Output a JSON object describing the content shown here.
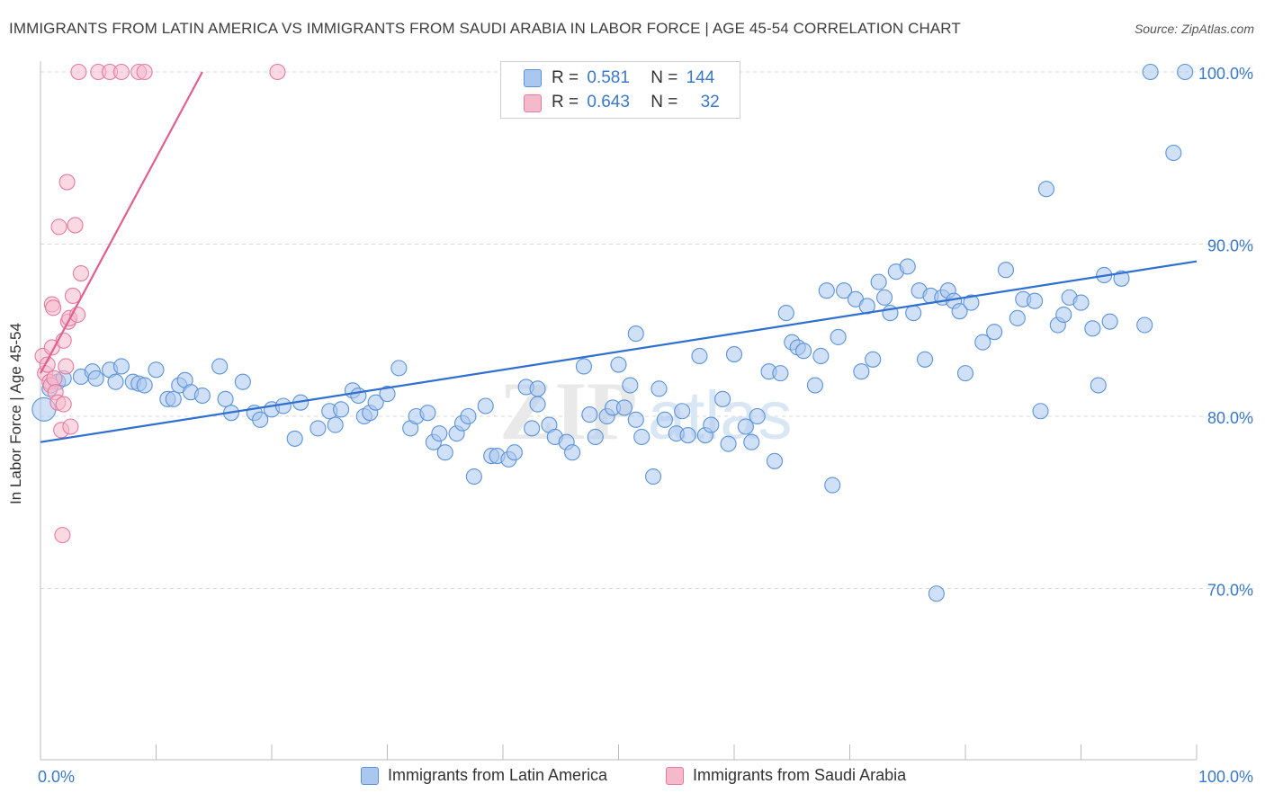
{
  "title": "IMMIGRANTS FROM LATIN AMERICA VS IMMIGRANTS FROM SAUDI ARABIA IN LABOR FORCE | AGE 45-54 CORRELATION CHART",
  "source": "Source: ZipAtlas.com",
  "watermark": {
    "zip": "ZIP",
    "atlas": "atlas"
  },
  "legend_stats": [
    {
      "r_label": "R =",
      "r_value": "0.581",
      "n_label": "N =",
      "n_value": "144"
    },
    {
      "r_label": "R =",
      "r_value": "0.643",
      "n_label": "N =",
      "n_value": "32"
    }
  ],
  "chart_data": {
    "type": "scatter",
    "title": "IMMIGRANTS FROM LATIN AMERICA VS IMMIGRANTS FROM SAUDI ARABIA IN LABOR FORCE | AGE 45-54 CORRELATION CHART",
    "xlabel": "",
    "ylabel": "In Labor Force | Age 45-54",
    "xlim": [
      0,
      100
    ],
    "ylim": [
      60,
      102
    ],
    "x_tick_labels": [
      "0.0%",
      "100.0%"
    ],
    "y_ticks": [
      {
        "value": 70,
        "label": "70.0%"
      },
      {
        "value": 80,
        "label": "80.0%"
      },
      {
        "value": 90,
        "label": "90.0%"
      },
      {
        "value": 100,
        "label": "100.0%"
      }
    ],
    "grid": true,
    "series": [
      {
        "name": "Immigrants from Latin America",
        "color": "#5b93d9",
        "fill": "#a9c7ef",
        "r": 0.581,
        "n": 144,
        "trendline": {
          "x": [
            0,
            100
          ],
          "y": [
            78.5,
            89.0
          ]
        },
        "points": [
          [
            0.3,
            80.4
          ],
          [
            0.8,
            81.6
          ],
          [
            1.5,
            82.0
          ],
          [
            2.0,
            82.2
          ],
          [
            3.5,
            82.3
          ],
          [
            4.5,
            82.6
          ],
          [
            4.8,
            82.2
          ],
          [
            6.0,
            82.7
          ],
          [
            6.5,
            82.0
          ],
          [
            7.0,
            82.9
          ],
          [
            8.0,
            82.0
          ],
          [
            8.5,
            81.9
          ],
          [
            9.0,
            81.8
          ],
          [
            10.0,
            82.7
          ],
          [
            11.0,
            81.0
          ],
          [
            11.5,
            81.0
          ],
          [
            12.0,
            81.8
          ],
          [
            12.5,
            82.1
          ],
          [
            13.0,
            81.4
          ],
          [
            14.0,
            81.2
          ],
          [
            15.5,
            82.9
          ],
          [
            16.0,
            81.0
          ],
          [
            16.5,
            80.2
          ],
          [
            17.5,
            82.0
          ],
          [
            18.5,
            80.2
          ],
          [
            19.0,
            79.8
          ],
          [
            20.0,
            80.4
          ],
          [
            21.0,
            80.6
          ],
          [
            22.0,
            78.7
          ],
          [
            22.5,
            80.8
          ],
          [
            24.0,
            79.3
          ],
          [
            25.0,
            80.3
          ],
          [
            25.5,
            79.5
          ],
          [
            26.0,
            80.4
          ],
          [
            27.0,
            81.5
          ],
          [
            27.5,
            81.2
          ],
          [
            28.0,
            80.0
          ],
          [
            28.5,
            80.2
          ],
          [
            29.0,
            80.8
          ],
          [
            30.0,
            81.3
          ],
          [
            31.0,
            82.8
          ],
          [
            32.0,
            79.3
          ],
          [
            32.5,
            80.0
          ],
          [
            33.5,
            80.2
          ],
          [
            34.0,
            78.5
          ],
          [
            34.5,
            79.0
          ],
          [
            35.0,
            77.9
          ],
          [
            36.0,
            79.0
          ],
          [
            36.5,
            79.6
          ],
          [
            37.0,
            80.0
          ],
          [
            37.5,
            76.5
          ],
          [
            38.5,
            80.6
          ],
          [
            39.0,
            77.7
          ],
          [
            39.5,
            77.7
          ],
          [
            40.5,
            77.5
          ],
          [
            41.0,
            77.9
          ],
          [
            42.0,
            81.7
          ],
          [
            42.5,
            79.3
          ],
          [
            43.0,
            80.7
          ],
          [
            44.0,
            79.5
          ],
          [
            44.5,
            78.8
          ],
          [
            45.5,
            78.5
          ],
          [
            46.0,
            77.9
          ],
          [
            47.0,
            82.9
          ],
          [
            47.5,
            80.1
          ],
          [
            48.0,
            78.8
          ],
          [
            49.0,
            80.0
          ],
          [
            49.5,
            80.5
          ],
          [
            50.0,
            83.0
          ],
          [
            50.5,
            80.5
          ],
          [
            51.0,
            81.8
          ],
          [
            51.5,
            79.8
          ],
          [
            52.0,
            78.8
          ],
          [
            53.0,
            76.5
          ],
          [
            53.5,
            81.6
          ],
          [
            54.0,
            79.8
          ],
          [
            55.0,
            79.0
          ],
          [
            55.5,
            80.3
          ],
          [
            56.0,
            78.9
          ],
          [
            57.0,
            83.5
          ],
          [
            57.5,
            78.9
          ],
          [
            58.0,
            79.5
          ],
          [
            59.0,
            81.0
          ],
          [
            59.5,
            78.4
          ],
          [
            60.0,
            83.6
          ],
          [
            61.0,
            79.4
          ],
          [
            61.5,
            78.5
          ],
          [
            62.0,
            80.0
          ],
          [
            63.0,
            82.6
          ],
          [
            63.5,
            77.4
          ],
          [
            64.0,
            82.5
          ],
          [
            64.5,
            86.0
          ],
          [
            65.0,
            84.3
          ],
          [
            65.5,
            84.0
          ],
          [
            66.0,
            83.8
          ],
          [
            67.0,
            81.8
          ],
          [
            67.5,
            83.5
          ],
          [
            68.0,
            87.3
          ],
          [
            68.5,
            76.0
          ],
          [
            69.0,
            84.6
          ],
          [
            69.5,
            87.3
          ],
          [
            70.5,
            86.8
          ],
          [
            71.0,
            82.6
          ],
          [
            71.5,
            86.4
          ],
          [
            72.0,
            83.3
          ],
          [
            72.5,
            87.8
          ],
          [
            73.0,
            86.9
          ],
          [
            73.5,
            86.0
          ],
          [
            74.0,
            88.4
          ],
          [
            75.0,
            88.7
          ],
          [
            75.5,
            86.0
          ],
          [
            76.0,
            87.3
          ],
          [
            76.5,
            83.3
          ],
          [
            77.0,
            87.0
          ],
          [
            77.5,
            69.7
          ],
          [
            78.0,
            86.9
          ],
          [
            78.5,
            87.3
          ],
          [
            79.0,
            86.7
          ],
          [
            79.5,
            86.1
          ],
          [
            80.0,
            82.5
          ],
          [
            80.5,
            86.6
          ],
          [
            81.5,
            84.3
          ],
          [
            82.5,
            84.9
          ],
          [
            83.5,
            88.5
          ],
          [
            84.5,
            85.7
          ],
          [
            85.0,
            86.8
          ],
          [
            86.0,
            86.7
          ],
          [
            86.5,
            80.3
          ],
          [
            87.0,
            93.2
          ],
          [
            88.0,
            85.3
          ],
          [
            88.5,
            85.9
          ],
          [
            89.0,
            86.9
          ],
          [
            90.0,
            86.6
          ],
          [
            91.0,
            85.1
          ],
          [
            91.5,
            81.8
          ],
          [
            92.0,
            88.2
          ],
          [
            92.5,
            85.5
          ],
          [
            93.5,
            88.0
          ],
          [
            95.5,
            85.3
          ],
          [
            96.0,
            100.0
          ],
          [
            98.0,
            95.3
          ],
          [
            99.0,
            100.0
          ],
          [
            51.5,
            84.8
          ],
          [
            43.0,
            81.6
          ]
        ]
      },
      {
        "name": "Immigrants from Saudi Arabia",
        "color": "#e87aa0",
        "fill": "#f5b9cc",
        "r": 0.643,
        "n": 32,
        "trendline": {
          "x": [
            0,
            14
          ],
          "y": [
            82.5,
            100.0
          ]
        },
        "points": [
          [
            0.2,
            83.5
          ],
          [
            0.4,
            82.5
          ],
          [
            0.6,
            83.0
          ],
          [
            0.8,
            82.0
          ],
          [
            0.9,
            81.8
          ],
          [
            1.0,
            84.0
          ],
          [
            1.0,
            86.5
          ],
          [
            1.2,
            82.2
          ],
          [
            1.3,
            81.4
          ],
          [
            1.5,
            80.8
          ],
          [
            1.6,
            91.0
          ],
          [
            1.8,
            79.2
          ],
          [
            1.9,
            73.1
          ],
          [
            2.0,
            84.4
          ],
          [
            2.0,
            80.7
          ],
          [
            2.2,
            82.9
          ],
          [
            2.3,
            93.6
          ],
          [
            2.4,
            85.5
          ],
          [
            2.5,
            85.7
          ],
          [
            2.6,
            79.4
          ],
          [
            2.8,
            87.0
          ],
          [
            3.0,
            91.1
          ],
          [
            3.2,
            85.9
          ],
          [
            3.5,
            88.3
          ],
          [
            3.3,
            100.0
          ],
          [
            5.0,
            100.0
          ],
          [
            6.0,
            100.0
          ],
          [
            7.0,
            100.0
          ],
          [
            8.5,
            100.0
          ],
          [
            9.0,
            100.0
          ],
          [
            20.5,
            100.0
          ],
          [
            1.1,
            86.3
          ]
        ]
      }
    ]
  }
}
